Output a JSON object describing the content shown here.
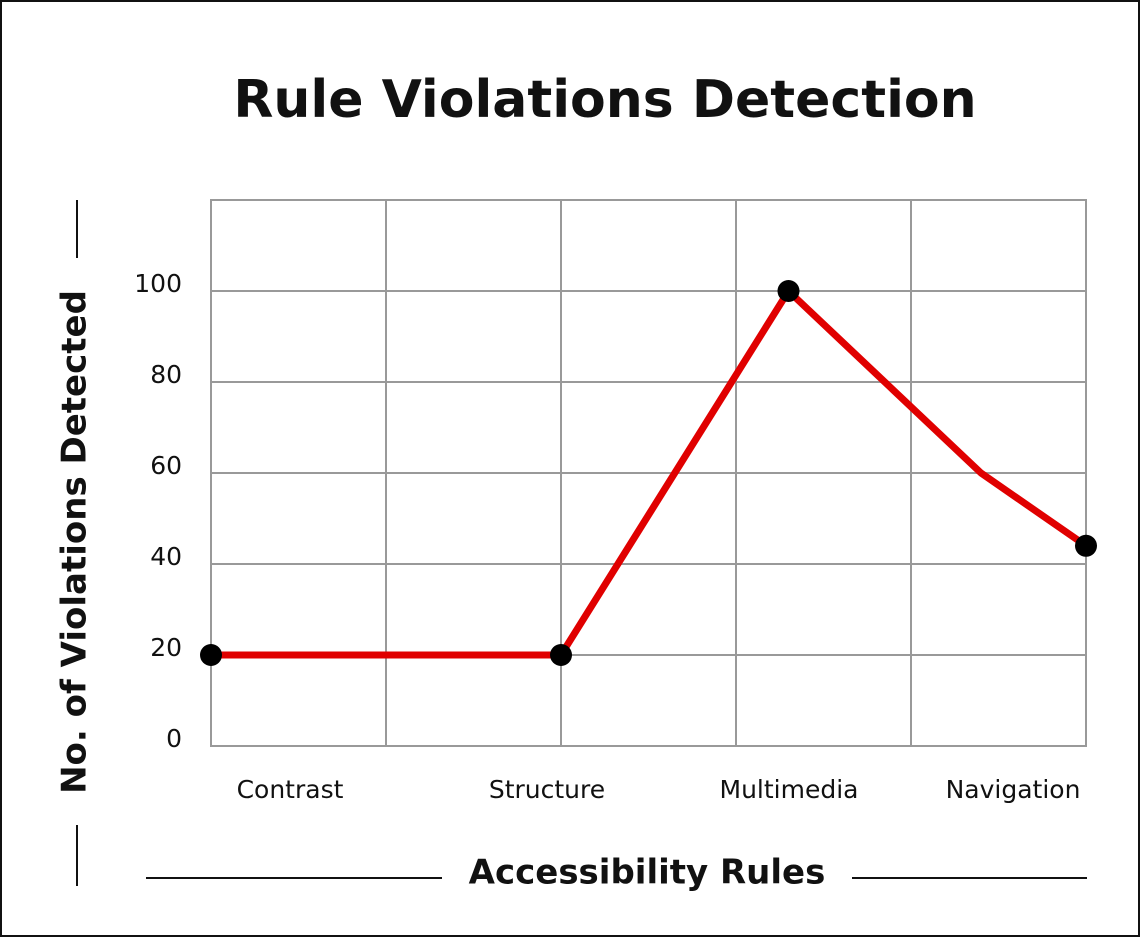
{
  "chart_data": {
    "type": "line",
    "title": "Rule Violations Detection",
    "x_label": "Accessibility Rules",
    "y_label": "No. of Violations Detected",
    "categories": [
      "Contrast",
      "Structure",
      "Multimedia",
      "Navigation"
    ],
    "x": [
      0,
      2,
      3.3,
      4.4,
      5
    ],
    "xlim": [
      0,
      5
    ],
    "series": [
      {
        "color": "#e00000",
        "values": [
          20,
          20,
          100,
          60,
          44
        ],
        "markers": [
          true,
          true,
          true,
          false,
          true
        ]
      }
    ],
    "ylim": [
      0,
      120
    ],
    "yticks": [
      0,
      20,
      40,
      60,
      80,
      100
    ],
    "grid": true
  }
}
